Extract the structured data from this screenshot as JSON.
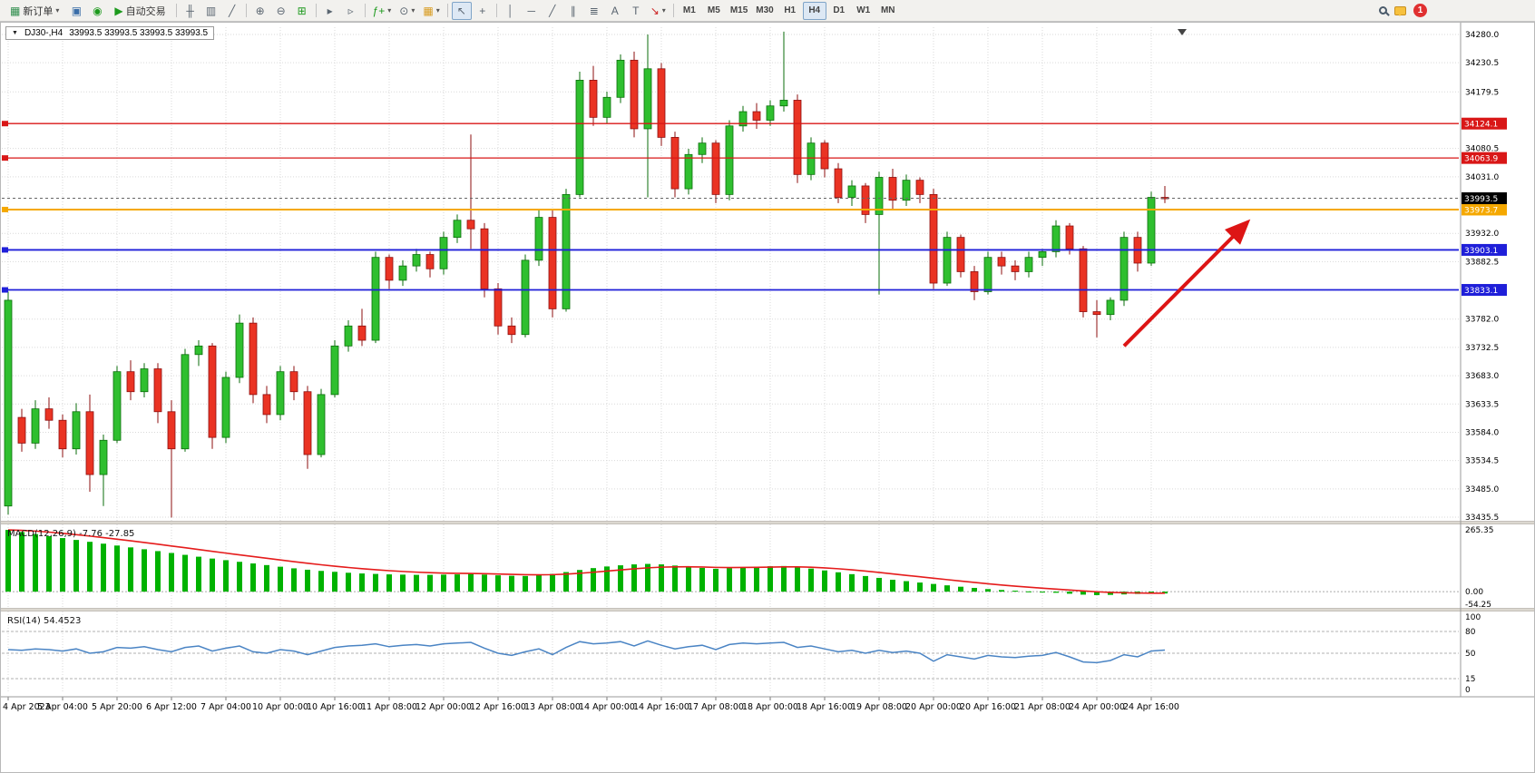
{
  "toolbar": {
    "new_order_label": "新订单",
    "auto_trading_label": "自动交易",
    "timeframes": [
      "M1",
      "M5",
      "M15",
      "M30",
      "H1",
      "H4",
      "D1",
      "W1",
      "MN"
    ],
    "active_timeframe": "H4",
    "notification_count": "1",
    "icons": {
      "new_order": "▦",
      "profile": "▣",
      "community": "◉",
      "play": "▶",
      "bar_chart": "╫",
      "candle_chart": "▥",
      "line_chart": "╱",
      "zoom_in": "⊕",
      "zoom_out": "⊖",
      "tile": "⊞",
      "autoscroll": "▸",
      "shift": "▹",
      "indicators": "ƒ+",
      "period": "⊙",
      "template": "▦",
      "cursor": "↖",
      "crosshair": "+",
      "vline": "│",
      "hline": "─",
      "trendline": "╱",
      "channel": "∥",
      "fibonacci": "≣",
      "text": "A",
      "text_label": "T",
      "arrows": "↘",
      "dropdown": "▾",
      "window_menu": "▼"
    }
  },
  "chart_header": {
    "symbol": "DJ30-,H4",
    "quote": "33993.5 33993.5 33993.5 33993.5"
  },
  "chart_data": [
    {
      "type": "candlestick",
      "title": "DJ30-,H4",
      "symbol": "DJ30-",
      "timeframe": "H4",
      "ylim": [
        33435.5,
        34280.0
      ],
      "y_ticks": [
        34280.0,
        34230.5,
        34179.5,
        34080.5,
        34031.0,
        33932.0,
        33882.5,
        33833.0,
        33782.0,
        33732.5,
        33683.0,
        33633.5,
        33584.0,
        33534.5,
        33485.0,
        33435.5
      ],
      "x_labels": [
        "4 Apr 2023",
        "5 Apr 04:00",
        "5 Apr 20:00",
        "6 Apr 12:00",
        "7 Apr 04:00",
        "10 Apr 00:00",
        "10 Apr 16:00",
        "11 Apr 08:00",
        "12 Apr 00:00",
        "12 Apr 16:00",
        "13 Apr 08:00",
        "14 Apr 00:00",
        "14 Apr 16:00",
        "17 Apr 08:00",
        "18 Apr 00:00",
        "18 Apr 16:00",
        "19 Apr 08:00",
        "20 Apr 00:00",
        "20 Apr 16:00",
        "21 Apr 08:00",
        "24 Apr 00:00",
        "24 Apr 16:00"
      ],
      "candles_per_label": 4,
      "colors": {
        "up": "#2fbf2f",
        "up_border": "#0b6e0b",
        "down": "#ea3323",
        "down_border": "#8d0f0f",
        "grid": "#d9d9d9"
      },
      "candles": [
        [
          33455,
          33830,
          33440,
          33815
        ],
        [
          33610,
          33625,
          33550,
          33565
        ],
        [
          33565,
          33640,
          33555,
          33625
        ],
        [
          33625,
          33645,
          33590,
          33605
        ],
        [
          33605,
          33615,
          33540,
          33555
        ],
        [
          33555,
          33635,
          33545,
          33620
        ],
        [
          33620,
          33650,
          33480,
          33510
        ],
        [
          33510,
          33580,
          33455,
          33570
        ],
        [
          33570,
          33700,
          33565,
          33690
        ],
        [
          33690,
          33710,
          33640,
          33655
        ],
        [
          33655,
          33705,
          33645,
          33695
        ],
        [
          33695,
          33705,
          33600,
          33620
        ],
        [
          33620,
          33640,
          33435,
          33555
        ],
        [
          33555,
          33730,
          33550,
          33720
        ],
        [
          33720,
          33745,
          33700,
          33735
        ],
        [
          33735,
          33740,
          33555,
          33575
        ],
        [
          33575,
          33690,
          33565,
          33680
        ],
        [
          33680,
          33790,
          33670,
          33775
        ],
        [
          33775,
          33785,
          33635,
          33650
        ],
        [
          33650,
          33665,
          33600,
          33615
        ],
        [
          33615,
          33700,
          33605,
          33690
        ],
        [
          33690,
          33700,
          33640,
          33655
        ],
        [
          33655,
          33665,
          33520,
          33545
        ],
        [
          33545,
          33660,
          33540,
          33650
        ],
        [
          33650,
          33745,
          33645,
          33735
        ],
        [
          33735,
          33780,
          33725,
          33770
        ],
        [
          33770,
          33800,
          33735,
          33745
        ],
        [
          33745,
          33900,
          33740,
          33890
        ],
        [
          33890,
          33895,
          33835,
          33850
        ],
        [
          33850,
          33885,
          33840,
          33875
        ],
        [
          33875,
          33905,
          33865,
          33895
        ],
        [
          33895,
          33900,
          33855,
          33870
        ],
        [
          33870,
          33935,
          33860,
          33925
        ],
        [
          33925,
          33965,
          33915,
          33955
        ],
        [
          33955,
          34105,
          33905,
          33940
        ],
        [
          33940,
          33950,
          33820,
          33835
        ],
        [
          33835,
          33845,
          33755,
          33770
        ],
        [
          33770,
          33785,
          33740,
          33755
        ],
        [
          33755,
          33895,
          33750,
          33885
        ],
        [
          33885,
          33975,
          33875,
          33960
        ],
        [
          33960,
          33975,
          33785,
          33800
        ],
        [
          33800,
          34010,
          33795,
          34000
        ],
        [
          34000,
          34215,
          33995,
          34200
        ],
        [
          34200,
          34225,
          34120,
          34135
        ],
        [
          34135,
          34180,
          34125,
          34170
        ],
        [
          34170,
          34245,
          34160,
          34235
        ],
        [
          34235,
          34250,
          34100,
          34115
        ],
        [
          34115,
          34280,
          33995,
          34220
        ],
        [
          34220,
          34230,
          34085,
          34100
        ],
        [
          34100,
          34110,
          33995,
          34010
        ],
        [
          34010,
          34080,
          34000,
          34070
        ],
        [
          34070,
          34100,
          34055,
          34090
        ],
        [
          34090,
          34095,
          33985,
          34000
        ],
        [
          34000,
          34130,
          33990,
          34120
        ],
        [
          34120,
          34155,
          34110,
          34145
        ],
        [
          34145,
          34160,
          34115,
          34130
        ],
        [
          34130,
          34165,
          34120,
          34155
        ],
        [
          34155,
          34285,
          34145,
          34165
        ],
        [
          34165,
          34175,
          34020,
          34035
        ],
        [
          34035,
          34100,
          34025,
          34090
        ],
        [
          34090,
          34095,
          34030,
          34045
        ],
        [
          34045,
          34055,
          33985,
          33995
        ],
        [
          33995,
          34025,
          33980,
          34015
        ],
        [
          34015,
          34020,
          33950,
          33965
        ],
        [
          33965,
          34040,
          33825,
          34030
        ],
        [
          34030,
          34045,
          33975,
          33990
        ],
        [
          33990,
          34035,
          33980,
          34025
        ],
        [
          34025,
          34030,
          33985,
          34000
        ],
        [
          34000,
          34010,
          33835,
          33845
        ],
        [
          33845,
          33935,
          33840,
          33925
        ],
        [
          33925,
          33930,
          33855,
          33865
        ],
        [
          33865,
          33875,
          33815,
          33830
        ],
        [
          33830,
          33900,
          33825,
          33890
        ],
        [
          33890,
          33900,
          33860,
          33875
        ],
        [
          33875,
          33885,
          33850,
          33865
        ],
        [
          33865,
          33900,
          33855,
          33890
        ],
        [
          33890,
          33905,
          33875,
          33900
        ],
        [
          33900,
          33955,
          33890,
          33945
        ],
        [
          33945,
          33950,
          33895,
          33905
        ],
        [
          33905,
          33910,
          33785,
          33795
        ],
        [
          33795,
          33815,
          33750,
          33790
        ],
        [
          33790,
          33820,
          33780,
          33815
        ],
        [
          33815,
          33935,
          33805,
          33925
        ],
        [
          33925,
          33935,
          33865,
          33880
        ],
        [
          33880,
          34005,
          33875,
          33995
        ],
        [
          33995,
          34015,
          33985,
          33993.5
        ]
      ],
      "hlines": [
        {
          "value": 34124.1,
          "label": "34124.1",
          "color": "#d91717",
          "width": 1.3
        },
        {
          "value": 34063.9,
          "label": "34063.9",
          "color": "#d91717",
          "width": 1.3
        },
        {
          "value": 33973.7,
          "label": "33973.7",
          "color": "#f5a800",
          "width": 2
        },
        {
          "value": 33903.1,
          "label": "33903.1",
          "color": "#1f1fd9",
          "width": 1.8
        },
        {
          "value": 33833.1,
          "label": "33833.1",
          "color": "#1f1fd9",
          "width": 1.8
        }
      ],
      "current_price": {
        "value": 33993.5,
        "label": "33993.5",
        "bg": "#000000",
        "fg": "#ffffff"
      },
      "annotation_arrow": {
        "from_index": 82,
        "from_price": 33735,
        "to_index": 91,
        "to_price": 33950,
        "color": "#dd1515"
      }
    },
    {
      "type": "bar",
      "name": "MACD",
      "label": "MACD(12,26,9) -7.76 -27.85",
      "params": "12,26,9",
      "current_values": [
        "-7.76",
        "-27.85"
      ],
      "ylim": [
        -54.25,
        265.35
      ],
      "y_ticks": [
        265.35,
        0,
        -54.25
      ],
      "bar_color": "#00b200",
      "signal_color": "#e51c1c",
      "signal_period": 9,
      "values": [
        265,
        256,
        247,
        238,
        230,
        222,
        214,
        206,
        198,
        190,
        182,
        174,
        166,
        158,
        150,
        142,
        135,
        128,
        121,
        114,
        107,
        100,
        94,
        89,
        85,
        81,
        78,
        76,
        74,
        73,
        72,
        72,
        73,
        74,
        76,
        73,
        70,
        68,
        67,
        70,
        76,
        84,
        93,
        101,
        108,
        113,
        117,
        119,
        117,
        112,
        107,
        102,
        98,
        101,
        105,
        107,
        109,
        110,
        106,
        99,
        91,
        83,
        75,
        67,
        59,
        51,
        45,
        39,
        33,
        27,
        21,
        16,
        11,
        7,
        4,
        1,
        -2,
        -5,
        -9,
        -13,
        -15,
        -14,
        -12,
        -10,
        -9,
        -8
      ]
    },
    {
      "type": "line",
      "name": "RSI",
      "label": "RSI(14) 54.4523",
      "current_value": "54.4523",
      "ylim": [
        0,
        100
      ],
      "y_ticks": [
        100,
        80,
        50,
        15,
        0
      ],
      "levels": [
        80,
        50,
        15
      ],
      "line_color": "#4a84c4",
      "values": [
        55,
        54,
        56,
        55,
        53,
        56,
        50,
        52,
        58,
        57,
        59,
        55,
        52,
        58,
        60,
        53,
        57,
        60,
        52,
        50,
        55,
        53,
        48,
        53,
        58,
        60,
        61,
        63,
        59,
        61,
        62,
        60,
        63,
        64,
        65,
        57,
        50,
        47,
        52,
        56,
        48,
        58,
        66,
        63,
        64,
        66,
        60,
        67,
        61,
        56,
        59,
        61,
        55,
        62,
        64,
        63,
        64,
        65,
        58,
        60,
        56,
        52,
        54,
        50,
        54,
        51,
        53,
        50,
        39,
        48,
        45,
        42,
        47,
        45,
        44,
        46,
        47,
        51,
        45,
        38,
        37,
        40,
        48,
        45,
        53,
        54.45
      ]
    }
  ]
}
